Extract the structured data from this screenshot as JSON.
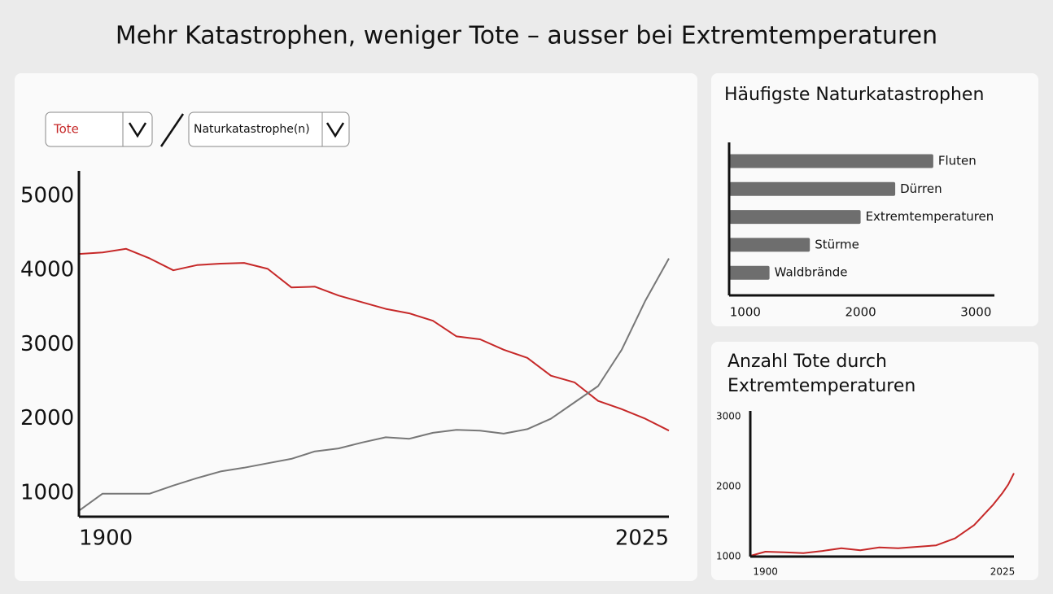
{
  "header": {
    "title": "Mehr Katastrophen, weniger Tote – ausser bei Extremtemperaturen"
  },
  "chart_data": [
    {
      "type": "line",
      "x": [
        1900,
        1905,
        1910,
        1915,
        1920,
        1925,
        1930,
        1935,
        1940,
        1945,
        1950,
        1955,
        1960,
        1965,
        1970,
        1975,
        1980,
        1985,
        1990,
        1995,
        2000,
        2005,
        2010,
        2015,
        2020,
        2025
      ],
      "series": [
        {
          "name": "Tote",
          "color": "#c62828",
          "values": [
            4220,
            4240,
            4290,
            4160,
            4000,
            4070,
            4090,
            4100,
            4020,
            3770,
            3780,
            3660,
            3570,
            3480,
            3420,
            3320,
            3110,
            3070,
            2930,
            2820,
            2580,
            2490,
            2240,
            2130,
            2000,
            1840
          ]
        },
        {
          "name": "Naturkatastrophe(n)",
          "color": "#777777",
          "values": [
            760,
            990,
            990,
            990,
            1100,
            1200,
            1290,
            1340,
            1400,
            1460,
            1560,
            1600,
            1680,
            1750,
            1730,
            1810,
            1850,
            1840,
            1800,
            1860,
            2000,
            2220,
            2440,
            2930,
            3590,
            4160
          ]
        }
      ],
      "xlim": [
        1900,
        2025
      ],
      "xticks": [
        1900,
        2025
      ],
      "ylim": [
        680,
        5340
      ],
      "yticks": [
        1000,
        2000,
        3000,
        4000,
        5000
      ]
    },
    {
      "type": "bar",
      "orientation": "horizontal",
      "title": "Häufigste Naturkatastrophen",
      "categories": [
        "Fluten",
        "Dürren",
        "Extremtemperaturen",
        "Stürme",
        "Waldbrände"
      ],
      "values": [
        2630,
        2300,
        2000,
        1560,
        1210
      ],
      "color": "#6e6e6e",
      "xlim": [
        860,
        3160
      ],
      "xticks": [
        1000,
        2000,
        3000
      ]
    },
    {
      "type": "line",
      "title": "Anzahl Tote durch Extremtemperaturen",
      "x": [
        1892,
        1900,
        1910,
        1920,
        1930,
        1940,
        1950,
        1960,
        1970,
        1980,
        1990,
        2000,
        2010,
        2020,
        2025,
        2028,
        2031
      ],
      "series": [
        {
          "color": "#c62828",
          "values": [
            1010,
            1070,
            1060,
            1050,
            1080,
            1120,
            1090,
            1130,
            1120,
            1140,
            1160,
            1260,
            1450,
            1740,
            1910,
            2030,
            2190
          ]
        }
      ],
      "xlim": [
        1892,
        2031
      ],
      "xticks": [
        1900,
        2025
      ],
      "ylim": [
        1000,
        3080
      ],
      "yticks": [
        1000,
        2000,
        3000
      ]
    }
  ]
}
